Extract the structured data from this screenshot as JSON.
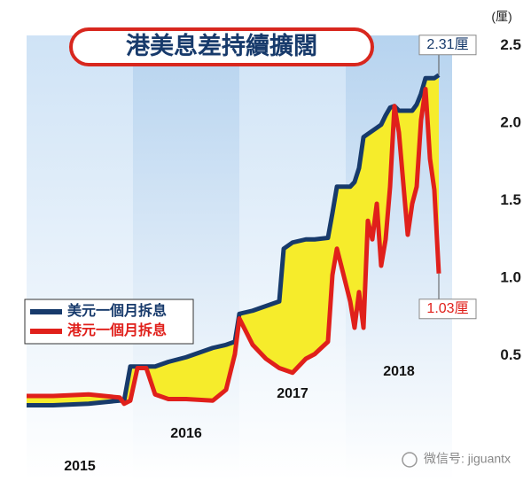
{
  "chart_data": {
    "type": "line",
    "title": "港美息差持續擴闊",
    "y_unit": "(厘)",
    "x": [
      2015.0,
      2015.25,
      2015.583,
      2015.875,
      2015.917,
      2015.975,
      2016.042,
      2016.125,
      2016.208,
      2016.333,
      2016.5,
      2016.75,
      2016.875,
      2016.958,
      2017.0,
      2017.125,
      2017.25,
      2017.375,
      2017.417,
      2017.5,
      2017.625,
      2017.708,
      2017.833,
      2017.875,
      2017.917,
      2017.958,
      2018.042,
      2018.083,
      2018.125,
      2018.167,
      2018.208,
      2018.25,
      2018.292,
      2018.333,
      2018.375,
      2018.417,
      2018.458,
      2018.5,
      2018.583,
      2018.625,
      2018.667,
      2018.708,
      2018.75,
      2018.792,
      2018.833,
      2018.875
    ],
    "series": [
      {
        "name": "美元一個月拆息",
        "color": "#173a6b",
        "values": [
          0.18,
          0.18,
          0.19,
          0.21,
          0.21,
          0.43,
          0.43,
          0.43,
          0.43,
          0.46,
          0.49,
          0.55,
          0.57,
          0.59,
          0.77,
          0.79,
          0.82,
          0.85,
          1.19,
          1.23,
          1.25,
          1.25,
          1.26,
          1.42,
          1.59,
          1.59,
          1.59,
          1.62,
          1.71,
          1.91,
          1.93,
          1.95,
          1.97,
          1.99,
          2.05,
          2.1,
          2.11,
          2.08,
          2.08,
          2.08,
          2.12,
          2.19,
          2.29,
          2.29,
          2.29,
          2.31
        ],
        "value_labels": [
          null,
          null,
          null,
          null,
          null,
          null,
          null,
          null,
          null,
          null,
          null,
          null,
          null,
          null,
          null,
          null,
          null,
          null,
          null,
          null,
          null,
          null,
          null,
          null,
          null,
          null,
          null,
          null,
          null,
          null,
          null,
          null,
          null,
          null,
          null,
          null,
          null,
          null,
          null,
          null,
          null,
          null,
          null,
          null,
          null,
          "2.31厘"
        ]
      },
      {
        "name": "港元一個月拆息",
        "color": "#e0201b",
        "values": [
          0.24,
          0.24,
          0.25,
          0.23,
          0.19,
          0.21,
          0.42,
          0.42,
          0.25,
          0.22,
          0.22,
          0.21,
          0.28,
          0.51,
          0.74,
          0.57,
          0.48,
          0.42,
          0.41,
          0.39,
          0.48,
          0.51,
          0.59,
          1.02,
          1.19,
          1.08,
          0.85,
          0.68,
          0.91,
          0.68,
          1.37,
          1.25,
          1.48,
          1.08,
          1.25,
          1.59,
          2.11,
          1.94,
          1.28,
          1.48,
          1.59,
          2.02,
          2.22,
          1.77,
          1.57,
          1.03
        ],
        "value_labels": [
          null,
          null,
          null,
          null,
          null,
          null,
          null,
          null,
          null,
          null,
          null,
          null,
          null,
          null,
          null,
          null,
          null,
          null,
          null,
          null,
          null,
          null,
          null,
          null,
          null,
          null,
          null,
          null,
          null,
          null,
          null,
          null,
          null,
          null,
          null,
          null,
          null,
          null,
          null,
          null,
          null,
          null,
          null,
          null,
          null,
          "1.03厘"
        ]
      }
    ],
    "fill_between_color": "#f6ec2b",
    "xlim": [
      2015,
      2019
    ],
    "xticks": [
      {
        "value": 2015.5,
        "label": "2015"
      },
      {
        "value": 2016.5,
        "label": "2016"
      },
      {
        "value": 2017.5,
        "label": "2017"
      },
      {
        "value": 2018.5,
        "label": "2018"
      }
    ],
    "ylim": [
      0,
      2.6
    ],
    "yticks": [
      0.5,
      {
        "value": 1.0,
        "label": "1.0"
      },
      1.5,
      {
        "value": 2.0,
        "label": "2.0"
      },
      2.5
    ],
    "grid": false,
    "legend": "left"
  },
  "watermark": "微信号: jiguantx"
}
